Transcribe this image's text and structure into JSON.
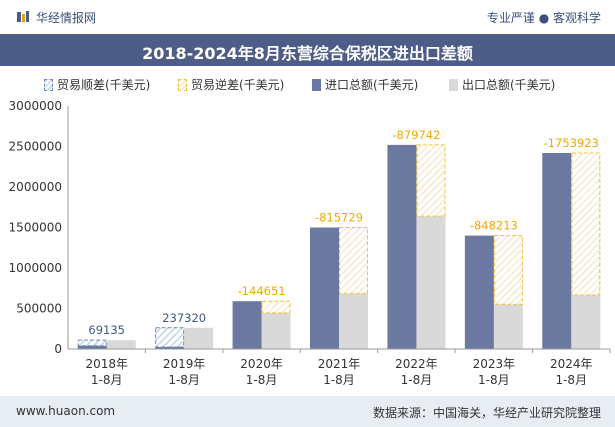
{
  "header": {
    "brand": "华经情报网",
    "tagline": "专业严谨 ● 客观科学"
  },
  "footer": {
    "site": "www.huaon.com",
    "source": "数据来源：中国海关，华经产业研究院整理"
  },
  "colors": {
    "import": "#6b789f",
    "export": "#d9d9d9",
    "surplus_border": "#6a8bb5",
    "deficit_border": "#f2c43a",
    "deficit_label": "#f0a800",
    "surplus_label": "#3d5a80",
    "header_band": "#4e5d87"
  },
  "chart_data": {
    "type": "bar",
    "title": "2018-2024年8月东营综合保税区进出口差额",
    "categories": [
      "2018年\n1-8月",
      "2019年\n1-8月",
      "2020年\n1-8月",
      "2021年\n1-8月",
      "2022年\n1-8月",
      "2023年\n1-8月",
      "2024年\n1-8月"
    ],
    "series": [
      {
        "name": "进口总额(千美元)",
        "values": [
          40000,
          25000,
          590000,
          1500000,
          2520000,
          1400000,
          2420000
        ]
      },
      {
        "name": "出口总额(千美元)",
        "values": [
          109135,
          262320,
          445349,
          684271,
          1640258,
          551787,
          666077
        ]
      }
    ],
    "balance_legend": {
      "surplus": "贸易顺差(千美元)",
      "deficit": "贸易逆差(千美元)"
    },
    "balance": [
      69135,
      237320,
      -144651,
      -815729,
      -879742,
      -848213,
      -1753923
    ],
    "balance_labels": [
      "69135",
      "237320",
      "-144651",
      "-815729",
      "-879742",
      "-848213",
      "-1753923"
    ],
    "yticks": [
      "0",
      "500000",
      "1000000",
      "1500000",
      "2000000",
      "2500000",
      "3000000"
    ],
    "ylim": [
      0,
      3000000
    ],
    "legend_position": "top",
    "grid": false
  }
}
